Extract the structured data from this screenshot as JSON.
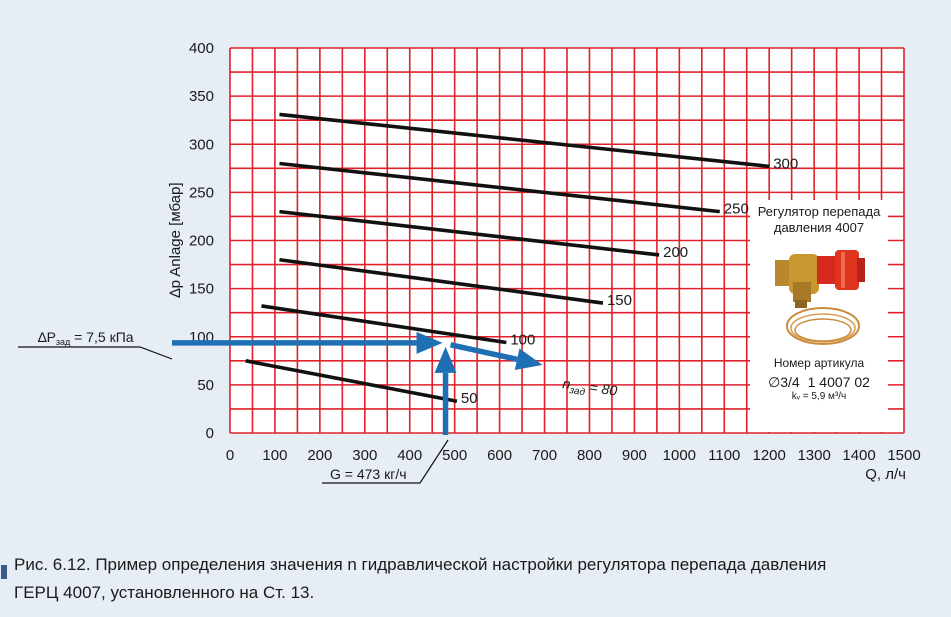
{
  "chart_data": {
    "type": "line",
    "title": "",
    "xlabel": "Q, л/ч",
    "ylabel": "∆p Anlage [мбар]",
    "xlim": [
      0,
      1500
    ],
    "ylim": [
      0,
      400
    ],
    "x_ticks": [
      0,
      100,
      200,
      300,
      400,
      500,
      600,
      700,
      800,
      900,
      1000,
      1100,
      1200,
      1300,
      1400,
      1500
    ],
    "y_ticks": [
      0,
      50,
      100,
      150,
      200,
      250,
      300,
      350,
      400
    ],
    "grid": true,
    "grid_color": "#e0202a",
    "line_color": "#111111",
    "series": [
      {
        "name": "50",
        "x": [
          35,
          505
        ],
        "y": [
          75,
          33
        ]
      },
      {
        "name": "100",
        "x": [
          70,
          615
        ],
        "y": [
          132,
          94
        ]
      },
      {
        "name": "150",
        "x": [
          110,
          830
        ],
        "y": [
          180,
          135
        ]
      },
      {
        "name": "200",
        "x": [
          110,
          955
        ],
        "y": [
          230,
          185
        ]
      },
      {
        "name": "250",
        "x": [
          110,
          1090
        ],
        "y": [
          280,
          230
        ]
      },
      {
        "name": "300",
        "x": [
          110,
          1200
        ],
        "y": [
          331,
          277
        ]
      }
    ],
    "annotations": {
      "dp_label": "∆P",
      "dp_sub": "зад",
      "dp_value": " = 7,5 кПа",
      "g_label": "G = 473 кг/ч",
      "g_value": 473,
      "n_label": "n",
      "n_sub": "зад",
      "n_value": " = 80",
      "dp_level": 75,
      "arrow_color": "#1f6fb4"
    }
  },
  "product": {
    "title": "Регулятор перепада давления 4007",
    "article_label": "Номер артикула",
    "size": "∅3/4",
    "article_number": "1 4007 02",
    "kv": "kᵥ = 5,9 м³/ч"
  },
  "caption": {
    "line1": "Рис. 6.12. Пример определения значения n гидравлической настройки регулятора перепада давления",
    "line2": "ГЕРЦ 4007, установленного на Ст. 13."
  }
}
